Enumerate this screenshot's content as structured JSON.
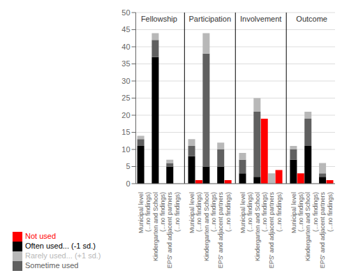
{
  "chart_data": {
    "type": "bar",
    "stacked": true,
    "grid": true,
    "legend": "bottom left",
    "categories": [
      "Municipal level",
      "(...no findings)",
      "Kindergarten and School",
      "(...no findings)",
      "EPS' and adjacent partners",
      "(...no findings)",
      "Municipal level",
      "(...no findings)",
      "Kindergarten and School",
      "(...no findings)",
      "EPS' and adjacent partners",
      "(...no findings)",
      "Municipal level",
      "(...no findings)",
      "Kindergarten and School",
      "(...no findings)",
      "EPS' and adjacent partners",
      "(...no findings)",
      "Municipal level",
      "(...no findings)",
      "Kindergarten and School",
      "(...no findings)",
      "EPS' and adjacent partners",
      "(...no findings)"
    ],
    "annotations": [
      "Fellowship",
      "Participation",
      "Involvement",
      "Outcome"
    ],
    "series": [
      {
        "name": "Often used... (-1 sd.)",
        "color": "#000000",
        "values": [
          11,
          0,
          37,
          0,
          5,
          0,
          8,
          0,
          5,
          0,
          5,
          0,
          3,
          0,
          2,
          0,
          0,
          0,
          7,
          0,
          11,
          0,
          2,
          0
        ]
      },
      {
        "name": "Sometime used",
        "color": "#606060",
        "values": [
          2,
          0,
          5,
          0,
          1,
          0,
          3,
          0,
          33,
          0,
          5,
          0,
          4,
          0,
          19,
          0,
          0,
          0,
          3,
          0,
          8,
          0,
          1,
          0
        ]
      },
      {
        "name": "Rarely used... (+1 sd.)",
        "color": "#b8b8b8",
        "values": [
          1,
          0,
          2,
          0,
          1,
          0,
          2,
          0,
          6,
          0,
          2,
          0,
          2,
          0,
          4,
          0,
          3,
          0,
          1,
          0,
          2,
          0,
          3,
          0
        ]
      },
      {
        "name": "Not used",
        "color": "#ff0000",
        "values": [
          0,
          0,
          0,
          0,
          0,
          0,
          0,
          1,
          0,
          0,
          0,
          1,
          0,
          0,
          0,
          19,
          0,
          4,
          0,
          3,
          0,
          0,
          0,
          1
        ]
      }
    ],
    "ylim": [
      0,
      50
    ],
    "yticks": [
      0,
      5,
      10,
      15,
      20,
      25,
      30,
      35,
      40,
      45,
      50
    ]
  }
}
